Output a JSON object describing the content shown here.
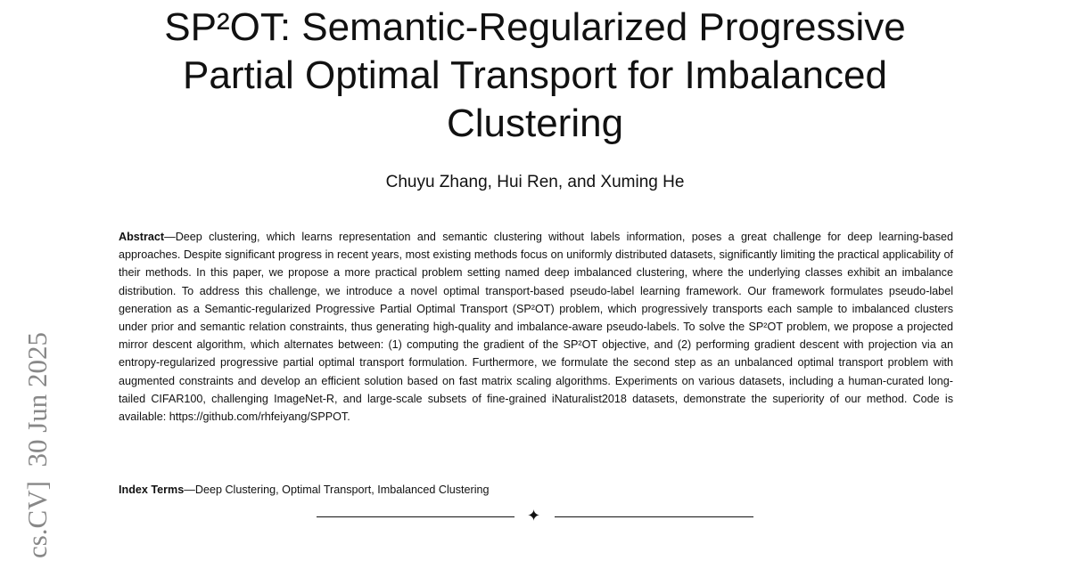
{
  "header": {
    "title": "SP²OT: Semantic-Regularized Progressive Partial Optimal Transport for Imbalanced Clustering",
    "authors": "Chuyu Zhang, Hui Ren, and Xuming He"
  },
  "abstract": {
    "label": "Abstract",
    "text": "—Deep clustering, which learns representation and semantic clustering without labels information, poses a great challenge for deep learning-based approaches. Despite significant progress in recent years, most existing methods focus on uniformly distributed datasets, significantly limiting the practical applicability of their methods. In this paper, we propose a more practical problem setting named deep imbalanced clustering, where the underlying classes exhibit an imbalance distribution. To address this challenge, we introduce a novel optimal transport-based pseudo-label learning framework. Our framework formulates pseudo-label generation as a Semantic-regularized Progressive Partial Optimal Transport (SP²OT) problem, which progressively transports each sample to imbalanced clusters under prior and semantic relation constraints, thus generating high-quality and imbalance-aware pseudo-labels. To solve the SP²OT problem, we propose a projected mirror descent algorithm, which alternates between: (1) computing the gradient of the SP²OT objective, and (2) performing gradient descent with projection via an entropy-regularized progressive partial optimal transport formulation. Furthermore, we formulate the second step as an unbalanced optimal transport problem with augmented constraints and develop an efficient solution based on fast matrix scaling algorithms. Experiments on various datasets, including a human-curated long-tailed CIFAR100, challenging ImageNet-R, and large-scale subsets of fine-grained iNaturalist2018 datasets, demonstrate the superiority of our method. Code is available: https://github.com/rhfeiyang/SPPOT."
  },
  "index_terms": {
    "label": "Index Terms",
    "text": "—Deep Clustering, Optimal Transport, Imbalanced Clustering"
  },
  "side_stamp": "cs.CV]  30 Jun 2025"
}
